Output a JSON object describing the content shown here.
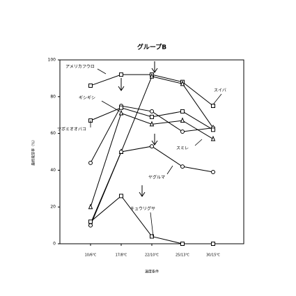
{
  "chart_data": {
    "type": "line",
    "title": "グループB",
    "x_label": "温度条件",
    "y_label": "最終発芽率（%）",
    "categories": [
      "10/6℃",
      "17/8℃",
      "22/10℃",
      "25/13℃",
      "30/15℃"
    ],
    "ylim": [
      0,
      100
    ],
    "yticks": [
      0,
      20,
      40,
      60,
      80,
      100
    ],
    "series": [
      {
        "name": "アメリカフウロ",
        "color": "#000000",
        "values": [
          86,
          92,
          92,
          88,
          75
        ]
      },
      {
        "name": "スイバ",
        "color": "#000000",
        "values": [
          11,
          50,
          91,
          87,
          63
        ]
      },
      {
        "name": "ギシギシ",
        "color": "#000000",
        "values": [
          44,
          75,
          72,
          61,
          63
        ]
      },
      {
        "name": "ツボミオオバコ",
        "color": "#000000",
        "values": [
          67,
          74,
          69,
          72,
          62
        ]
      },
      {
        "name": "スミレ",
        "color": "#000000",
        "values": [
          20,
          71,
          65,
          67,
          57
        ]
      },
      {
        "name": "ヤグルマ",
        "color": "#000000",
        "values": [
          10,
          50,
          53,
          42,
          39
        ]
      },
      {
        "name": "キュウリグサ",
        "color": "#000000",
        "values": [
          12,
          26,
          4,
          0,
          0
        ]
      }
    ]
  }
}
